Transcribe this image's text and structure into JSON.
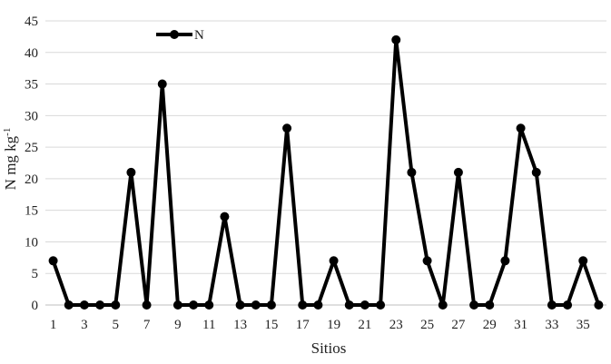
{
  "chart_data": {
    "type": "line",
    "xlabel": "Sitios",
    "ylabel": "N mg  kg",
    "ylabel_superscript": "-1",
    "ylim": [
      0,
      45
    ],
    "yticks": [
      0,
      5,
      10,
      15,
      20,
      25,
      30,
      35,
      40,
      45
    ],
    "xticks": [
      1,
      3,
      5,
      7,
      9,
      11,
      13,
      15,
      17,
      19,
      21,
      23,
      25,
      27,
      29,
      31,
      33,
      35
    ],
    "grid": true,
    "legend_position": "top-left",
    "series": [
      {
        "name": "N",
        "color": "#000000",
        "x": [
          1,
          2,
          3,
          4,
          5,
          6,
          7,
          8,
          9,
          10,
          11,
          12,
          13,
          14,
          15,
          16,
          17,
          18,
          19,
          20,
          21,
          22,
          23,
          24,
          25,
          26,
          27,
          28,
          29,
          30,
          31,
          32,
          33,
          34,
          35,
          36
        ],
        "values": [
          7,
          0,
          0,
          0,
          0,
          21,
          0,
          35,
          0,
          0,
          0,
          14,
          0,
          0,
          0,
          28,
          0,
          0,
          7,
          0,
          0,
          0,
          42,
          21,
          7,
          0,
          21,
          0,
          0,
          7,
          28,
          21,
          0,
          0,
          7,
          0
        ]
      }
    ]
  }
}
